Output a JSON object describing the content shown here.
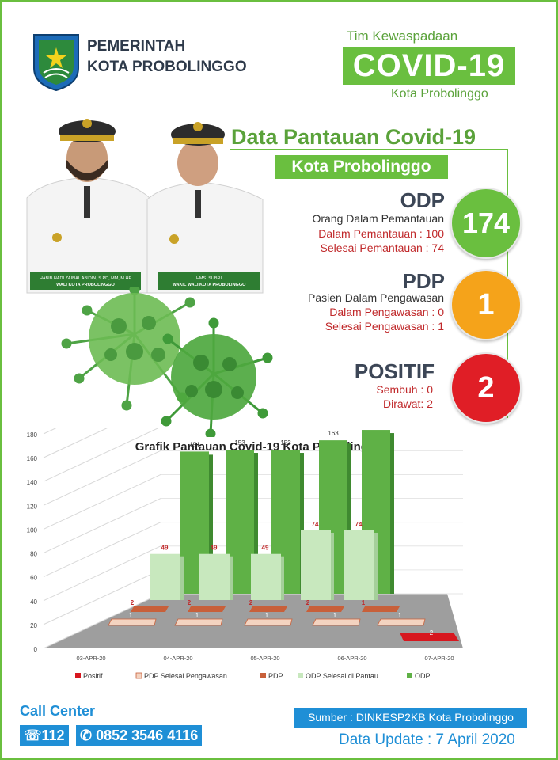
{
  "header": {
    "gov_line1": "PEMERINTAH",
    "gov_line2": "KOTA PROBOLINGGO",
    "team_label": "Tim Kewaspadaan",
    "covid_label": "COVID-19",
    "city_label": "Kota Probolinggo"
  },
  "officials": [
    {
      "caption1": "HABIB HADI ZAINAL ABIDIN, S.PD, MM, M.HP",
      "caption2": "WALI KOTA PROBOLINGGO"
    },
    {
      "caption1": "HMS. SUBRI",
      "caption2": "WAKIL WALI KOTA PROBOLINGGO"
    }
  ],
  "main": {
    "title": "Data Pantauan Covid-19",
    "subtitle": "Kota Probolinggo"
  },
  "stats": {
    "odp": {
      "head": "ODP",
      "desc": "Orang Dalam Pemantauan",
      "line1": "Dalam Pemantauan : 100",
      "line2": "Selesai Pemantauan : 74",
      "value": "174",
      "color": "#6abf3f"
    },
    "pdp": {
      "head": "PDP",
      "desc": "Pasien Dalam Pengawasan",
      "line1": "Dalam Pengawasan : 0",
      "line2": "Selesai Pengawasan : 1",
      "value": "1",
      "color": "#f5a31a"
    },
    "positif": {
      "head": "POSITIF",
      "line1": "Sembuh : 0",
      "line2": "Dirawat: 2",
      "value": "2",
      "color": "#e01e26"
    }
  },
  "chart_data": {
    "type": "bar",
    "title": "Grafik Pantauan Covid-19 Kota Probolinggo",
    "categories": [
      "03-APR-20",
      "04-APR-20",
      "05-APR-20",
      "06-APR-20",
      "07-APR-20"
    ],
    "ylim": [
      0,
      180
    ],
    "yticks": [
      0,
      20,
      40,
      60,
      80,
      100,
      120,
      140,
      160,
      180
    ],
    "series": [
      {
        "name": "Positif",
        "values": [
          null,
          null,
          null,
          null,
          2
        ],
        "color": "#d7171f"
      },
      {
        "name": "PDP Selesai Pengawasan",
        "values": [
          1,
          1,
          1,
          1,
          1
        ],
        "color": "#f3d3c0"
      },
      {
        "name": "PDP",
        "values": [
          2,
          2,
          2,
          2,
          1
        ],
        "color": "#c8603a"
      },
      {
        "name": "ODP Selesai di Pantau",
        "values": [
          49,
          49,
          49,
          74,
          74
        ],
        "color": "#c8e8be"
      },
      {
        "name": "ODP",
        "values": [
          151,
          153,
          153,
          163,
          174
        ],
        "color": "#5fb146"
      }
    ],
    "legend_position": "bottom",
    "grid": true
  },
  "footer": {
    "call_center": "Call Center",
    "phone1": "112",
    "phone2": "0852 3546 4116",
    "source": "Sumber : DINKESP2KB Kota Probolinggo",
    "update": "Data Update : 7 April 2020"
  }
}
